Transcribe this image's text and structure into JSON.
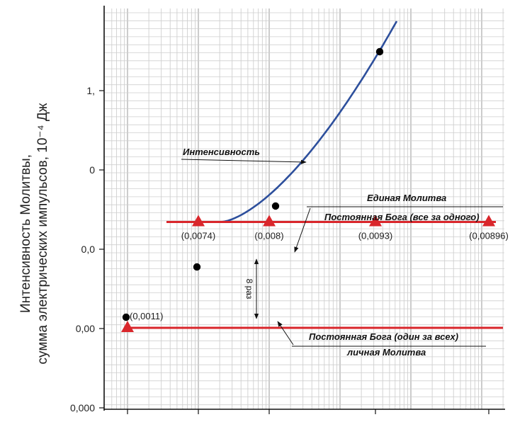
{
  "chart_data": {
    "type": "line",
    "title": "",
    "xlabel": "",
    "ylabel_lines": [
      "Интенсивность Молитвы,",
      "сумма электрических импульсов, 10⁻⁴ Дж"
    ],
    "y_tick_labels": [
      "1,",
      "0",
      "0,0",
      "0,00",
      "0,000"
    ],
    "grid": true,
    "series": [
      {
        "name": "Интенсивность",
        "kind": "curve",
        "color": "#2d4f9c",
        "marker_color": "#000000",
        "points": [
          {
            "x": 1,
            "y": 0.1
          },
          {
            "x": 2,
            "y": 0.26
          },
          {
            "x": 3,
            "y": 0.55
          },
          {
            "x": 4.5,
            "y": 1.49
          }
        ]
      },
      {
        "name": "Единая Молитва Постоянная Бога (все за одного)",
        "kind": "hline",
        "color": "#d9262b",
        "y": 0.23,
        "x_from": 1.6,
        "x_to": 6.2,
        "markers": [
          {
            "x": 2,
            "label": "(0,0074)"
          },
          {
            "x": 3,
            "label": "(0,008)"
          },
          {
            "x": 4.5,
            "label": "(0,0093)"
          },
          {
            "x": 6.1,
            "label": "(0,00896)"
          }
        ]
      },
      {
        "name": "Постоянная Бога (один за всех) личная Молитва",
        "kind": "hline",
        "color": "#d9262b",
        "y": 0.1,
        "x_from": 1,
        "x_to": 6.3,
        "markers": [
          {
            "x": 1,
            "label": "(0,0011)"
          }
        ]
      }
    ],
    "annotations": [
      {
        "text": "Интенсивность",
        "target": "curve"
      },
      {
        "text_lines": [
          "Единая Молитва",
          "Постоянная Бога (все за одного)"
        ],
        "target": "upper-line"
      },
      {
        "text_lines": [
          "Постоянная Бога (один за всех)",
          "личная Молитва"
        ],
        "target": "lower-line"
      },
      {
        "text": "8 раз",
        "target": "gap-between-lines"
      }
    ]
  }
}
